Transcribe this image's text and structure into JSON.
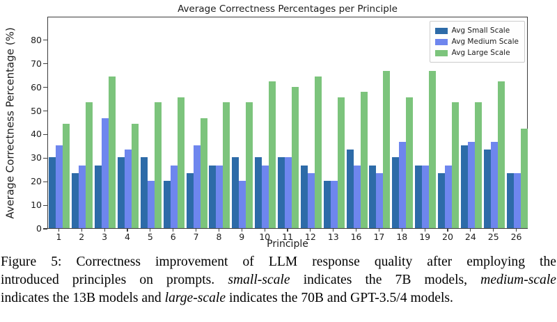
{
  "chart_data": {
    "type": "bar",
    "title": "Average Correctness Percentages per Principle",
    "xlabel": "Principle",
    "ylabel": "Average Correctness Percentage (%)",
    "categories": [
      "1",
      "2",
      "3",
      "4",
      "5",
      "6",
      "7",
      "8",
      "9",
      "10",
      "11",
      "12",
      "13",
      "16",
      "17",
      "18",
      "19",
      "20",
      "24",
      "25",
      "26"
    ],
    "series": [
      {
        "name": "Avg Small Scale",
        "color": "#2d6ba8",
        "values": [
          30,
          23.3,
          26.7,
          30,
          30,
          20,
          23.3,
          26.7,
          30,
          30,
          30,
          26.7,
          20,
          33.3,
          26.7,
          30,
          26.7,
          23.3,
          35,
          33.3,
          23.3
        ]
      },
      {
        "name": "Avg Medium Scale",
        "color": "#6e86ee",
        "values": [
          35,
          26.7,
          46.7,
          33.3,
          20,
          26.7,
          35,
          26.7,
          20,
          26.7,
          30,
          23.3,
          20,
          26.7,
          23.3,
          36.7,
          26.7,
          26.7,
          36.7,
          36.7,
          23.3
        ]
      },
      {
        "name": "Avg Large Scale",
        "color": "#7cc47c",
        "values": [
          44.4,
          53.3,
          64.4,
          44.4,
          53.3,
          55.6,
          46.7,
          53.3,
          53.3,
          62.2,
          60,
          64.4,
          55.6,
          57.8,
          66.7,
          55.6,
          66.7,
          53.3,
          53.3,
          62.2,
          42.2
        ]
      }
    ],
    "ylim": [
      0,
      90
    ],
    "yticks": [
      0,
      10,
      20,
      30,
      40,
      50,
      60,
      70,
      80
    ],
    "legend_position": "upper right",
    "grid": false
  },
  "caption": {
    "lines": [
      [
        {
          "text": "Figure 5: Correctness improvement of LLM response quality after employing the",
          "italic": false
        }
      ],
      [
        {
          "text": "introduced principles on prompts. ",
          "italic": false
        },
        {
          "text": "small-scale",
          "italic": true
        },
        {
          "text": " indicates the 7B models, ",
          "italic": false
        },
        {
          "text": "medium-scale",
          "italic": true
        }
      ],
      [
        {
          "text": "indicates the 13B models and ",
          "italic": false
        },
        {
          "text": "large-scale",
          "italic": true
        },
        {
          "text": " indicates the 70B and GPT-3.5/4 models.",
          "italic": false
        }
      ]
    ]
  }
}
